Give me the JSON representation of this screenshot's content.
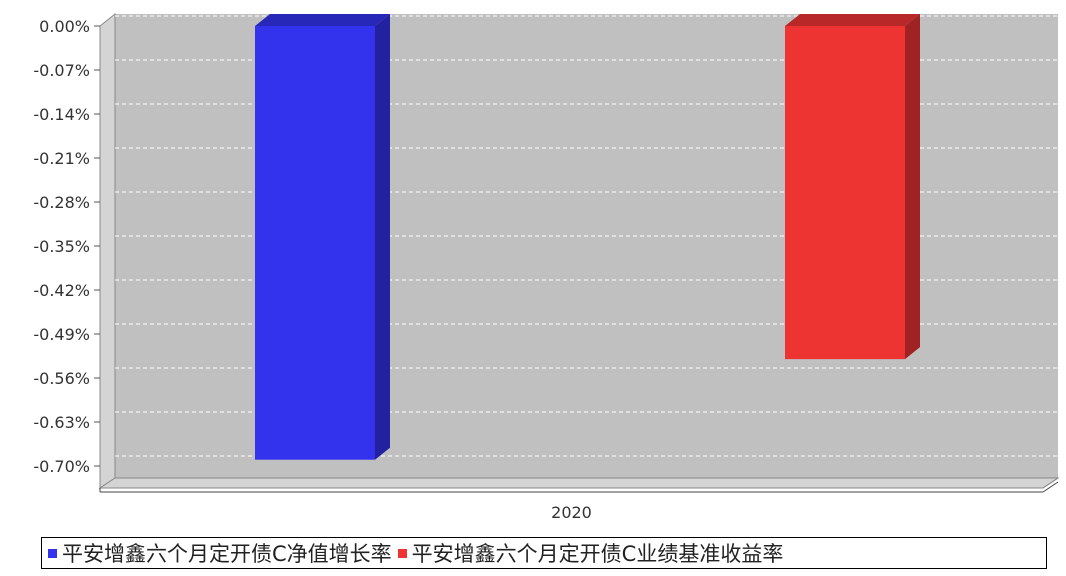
{
  "chart_data": {
    "type": "bar",
    "title": "",
    "xlabel": "",
    "ylabel": "",
    "categories": [
      "2020"
    ],
    "series": [
      {
        "name": "平安增鑫六个月定开债C净值增长率",
        "values": [
          -0.69
        ],
        "color": "#3333ee"
      },
      {
        "name": "平安增鑫六个月定开债C业绩基准收益率",
        "values": [
          -0.53
        ],
        "color": "#ee3333"
      }
    ],
    "ylim": [
      -0.7,
      0.0
    ],
    "yticks": [
      "0.00%",
      "-0.07%",
      "-0.14%",
      "-0.21%",
      "-0.28%",
      "-0.35%",
      "-0.42%",
      "-0.49%",
      "-0.56%",
      "-0.63%",
      "-0.70%"
    ],
    "ytick_values": [
      0.0,
      -0.07,
      -0.14,
      -0.21,
      -0.28,
      -0.35,
      -0.42,
      -0.49,
      -0.56,
      -0.63,
      -0.7
    ],
    "grid": true,
    "legend_position": "bottom",
    "plot_background": "#c0c0c0"
  }
}
